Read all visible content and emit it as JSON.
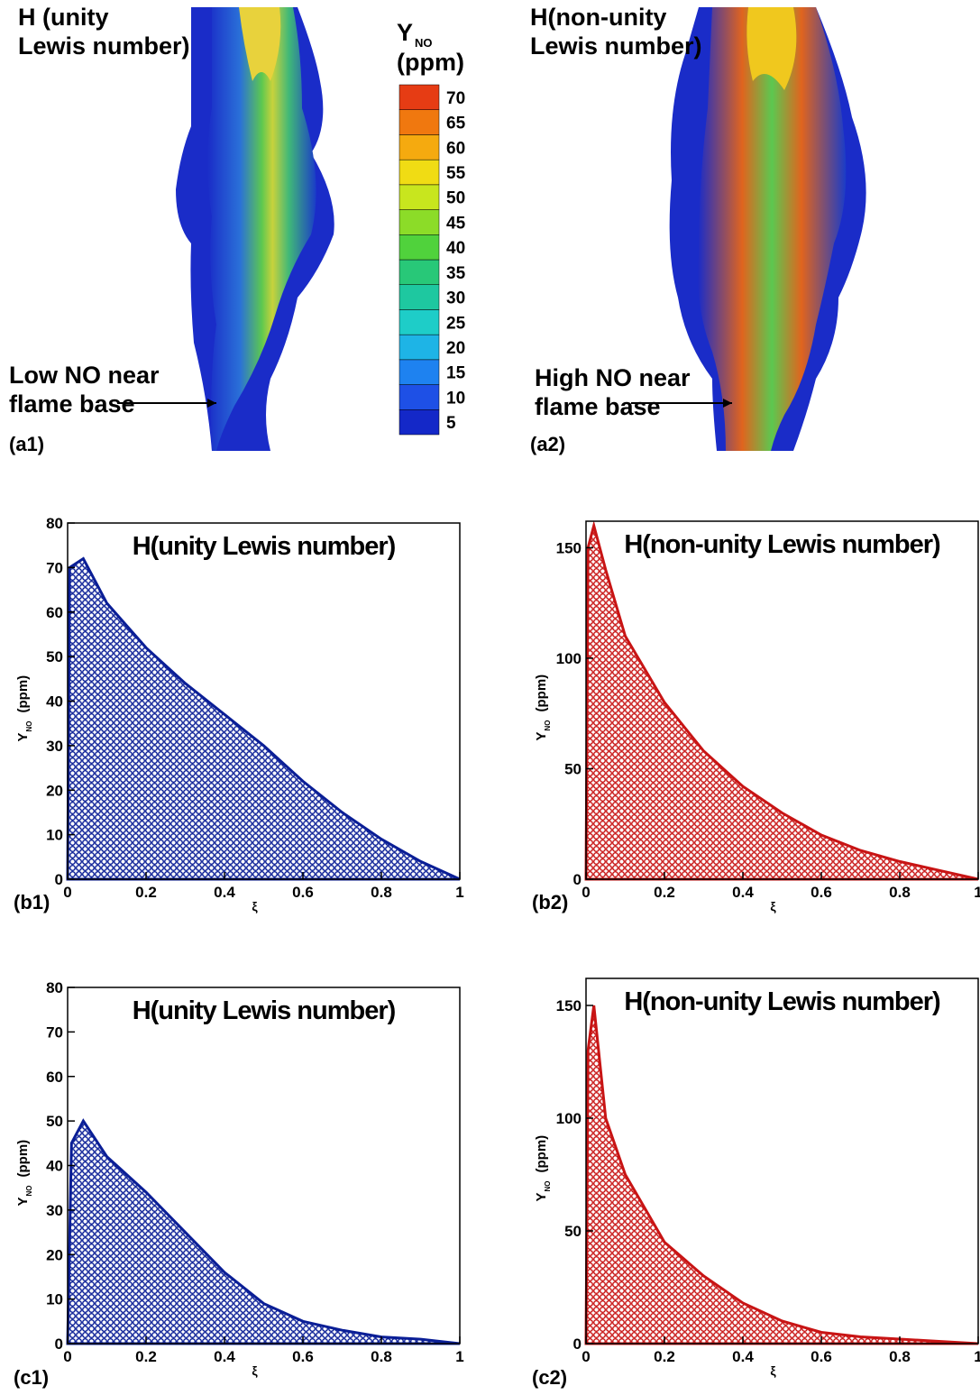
{
  "images": [
    {
      "label_lines": [
        "H (unity",
        "Lewis number)"
      ],
      "annotation_lines": [
        "Low NO near",
        "flame  base"
      ],
      "panel": "(a1)"
    },
    {
      "label_lines": [
        "H(non-unity",
        "Lewis number)"
      ],
      "annotation_lines": [
        "High NO near",
        "flame base"
      ],
      "panel": "(a2)"
    }
  ],
  "colorbar": {
    "title": "Y",
    "title_sub": "NO",
    "unit": "(ppm)",
    "clim": [
      2.5,
      72.5
    ],
    "ticks": [
      5,
      10,
      15,
      20,
      25,
      30,
      35,
      40,
      45,
      50,
      55,
      60,
      65,
      70
    ],
    "colors": [
      "#1428c8",
      "#1e50e6",
      "#1e82f0",
      "#1eb4e6",
      "#1ecdc8",
      "#1ec8a0",
      "#28c878",
      "#50d23c",
      "#8cdc28",
      "#c8e61e",
      "#f0dc14",
      "#f5aa0f",
      "#f0780f",
      "#e63c14"
    ]
  },
  "chart_data": [
    {
      "type": "area",
      "title": "H(unity Lewis number)",
      "panel": "(b1)",
      "xlabel": "ξ",
      "ylabel": {
        "main": "Y",
        "sub": "NO",
        "unit": "(ppm)"
      },
      "color": "#0a1e96",
      "x": [
        0,
        0.005,
        0.04,
        0.1,
        0.2,
        0.3,
        0.4,
        0.5,
        0.6,
        0.7,
        0.8,
        0.9,
        1
      ],
      "values": [
        0,
        70,
        72,
        62,
        52,
        44,
        37,
        30,
        22,
        15,
        9,
        4,
        0
      ],
      "xlim": [
        0,
        1
      ],
      "xticks": [
        0,
        0.2,
        0.4,
        0.6,
        0.8,
        1
      ],
      "ylim": [
        0,
        80
      ],
      "yticks": [
        0,
        10,
        20,
        30,
        40,
        50,
        60,
        70,
        80
      ]
    },
    {
      "type": "area",
      "title": "H(non-unity Lewis number)",
      "panel": "(b2)",
      "xlabel": "ξ",
      "ylabel": {
        "main": "Y",
        "sub": "NO",
        "unit": "(ppm)"
      },
      "color": "#c81414",
      "x": [
        0,
        0.005,
        0.02,
        0.05,
        0.1,
        0.2,
        0.3,
        0.4,
        0.5,
        0.6,
        0.7,
        0.8,
        0.9,
        1
      ],
      "values": [
        0,
        150,
        160,
        140,
        110,
        80,
        58,
        42,
        30,
        20,
        13,
        8,
        4,
        0
      ],
      "xlim": [
        0,
        1
      ],
      "xticks": [
        0,
        0.2,
        0.4,
        0.6,
        0.8,
        1
      ],
      "ylim": [
        0,
        162
      ],
      "yticks": [
        0,
        50,
        100,
        150
      ]
    },
    {
      "type": "area",
      "title": "H(unity Lewis number)",
      "panel": "(c1)",
      "xlabel": "ξ",
      "ylabel": {
        "main": "Y",
        "sub": "NO",
        "unit": "(ppm)"
      },
      "color": "#0a1e96",
      "x": [
        0,
        0.01,
        0.04,
        0.1,
        0.2,
        0.3,
        0.4,
        0.5,
        0.6,
        0.7,
        0.8,
        0.9,
        1
      ],
      "values": [
        0,
        45,
        50,
        42,
        34,
        25,
        16,
        9,
        5,
        3,
        1.5,
        1,
        0
      ],
      "xlim": [
        0,
        1
      ],
      "xticks": [
        0,
        0.2,
        0.4,
        0.6,
        0.8,
        1
      ],
      "ylim": [
        0,
        80
      ],
      "yticks": [
        0,
        10,
        20,
        30,
        40,
        50,
        60,
        70,
        80
      ]
    },
    {
      "type": "area",
      "title": "H(non-unity Lewis number)",
      "panel": "(c2)",
      "xlabel": "ξ",
      "ylabel": {
        "main": "Y",
        "sub": "NO",
        "unit": "(ppm)"
      },
      "color": "#c81414",
      "x": [
        0,
        0.005,
        0.02,
        0.05,
        0.1,
        0.15,
        0.2,
        0.3,
        0.4,
        0.5,
        0.6,
        0.7,
        0.8,
        0.9,
        1
      ],
      "values": [
        0,
        130,
        150,
        100,
        75,
        60,
        45,
        30,
        18,
        10,
        5,
        3,
        2,
        1,
        0
      ],
      "xlim": [
        0,
        1
      ],
      "xticks": [
        0,
        0.2,
        0.4,
        0.6,
        0.8,
        1
      ],
      "ylim": [
        0,
        162
      ],
      "yticks": [
        0,
        50,
        100,
        150
      ]
    }
  ]
}
